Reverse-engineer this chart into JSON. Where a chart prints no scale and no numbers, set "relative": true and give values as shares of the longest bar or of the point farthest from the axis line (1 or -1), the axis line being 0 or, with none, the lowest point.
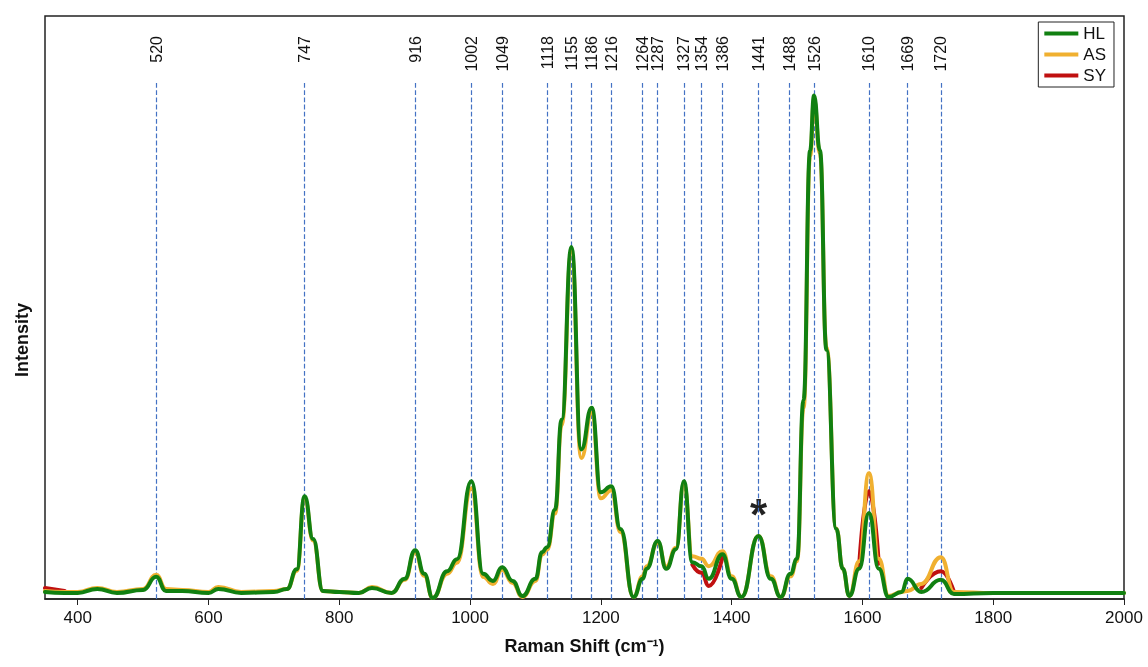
{
  "chart_data": {
    "type": "line",
    "relative": true,
    "xlabel": "Raman Shift (cm⁻¹)",
    "ylabel": "Intensity",
    "xlim": [
      350,
      2000
    ],
    "xticks": [
      400,
      600,
      800,
      1000,
      1200,
      1400,
      1600,
      1800,
      2000
    ],
    "legend": "top right",
    "grid": false,
    "marker": "none",
    "line_style": "solid",
    "x": [
      350,
      380,
      400,
      430,
      460,
      500,
      520,
      535,
      560,
      600,
      615,
      650,
      700,
      720,
      735,
      747,
      760,
      775,
      800,
      830,
      850,
      880,
      900,
      916,
      930,
      943,
      965,
      980,
      1002,
      1020,
      1035,
      1049,
      1065,
      1080,
      1100,
      1110,
      1118,
      1130,
      1140,
      1155,
      1170,
      1186,
      1200,
      1216,
      1230,
      1250,
      1264,
      1270,
      1287,
      1300,
      1315,
      1327,
      1340,
      1354,
      1365,
      1386,
      1400,
      1415,
      1441,
      1460,
      1475,
      1490,
      1500,
      1510,
      1520,
      1526,
      1535,
      1545,
      1560,
      1570,
      1580,
      1595,
      1610,
      1625,
      1640,
      1660,
      1669,
      1690,
      1720,
      1740,
      1800,
      2000
    ],
    "series": [
      {
        "name": "HL",
        "color": "#118011",
        "values": [
          0.014,
          0.012,
          0.012,
          0.02,
          0.012,
          0.018,
          0.044,
          0.016,
          0.016,
          0.012,
          0.02,
          0.012,
          0.014,
          0.02,
          0.059,
          0.204,
          0.119,
          0.016,
          0.014,
          0.012,
          0.022,
          0.012,
          0.04,
          0.097,
          0.05,
          0.002,
          0.055,
          0.079,
          0.234,
          0.05,
          0.036,
          0.063,
          0.036,
          0.006,
          0.04,
          0.093,
          0.103,
          0.178,
          0.356,
          0.699,
          0.297,
          0.38,
          0.212,
          0.224,
          0.139,
          0.004,
          0.04,
          0.06,
          0.115,
          0.06,
          0.099,
          0.234,
          0.073,
          0.065,
          0.04,
          0.089,
          0.04,
          0.004,
          0.125,
          0.04,
          0.004,
          0.05,
          0.08,
          0.396,
          0.891,
          1,
          0.891,
          0.495,
          0.139,
          0.06,
          0.006,
          0.06,
          0.171,
          0.06,
          0.004,
          0.014,
          0.04,
          0.014,
          0.038,
          0.01,
          0.012,
          0.012
        ]
      },
      {
        "name": "AS",
        "color": "#f0b030",
        "values": [
          0.016,
          0.014,
          0.014,
          0.022,
          0.014,
          0.02,
          0.048,
          0.02,
          0.018,
          0.014,
          0.024,
          0.014,
          0.016,
          0.02,
          0.056,
          0.2,
          0.116,
          0.016,
          0.014,
          0.012,
          0.024,
          0.012,
          0.038,
          0.093,
          0.046,
          0.002,
          0.05,
          0.072,
          0.22,
          0.044,
          0.03,
          0.058,
          0.032,
          0.004,
          0.036,
          0.088,
          0.098,
          0.17,
          0.345,
          0.69,
          0.28,
          0.37,
          0.2,
          0.216,
          0.133,
          0.004,
          0.045,
          0.065,
          0.112,
          0.064,
          0.102,
          0.228,
          0.085,
          0.08,
          0.065,
          0.095,
          0.045,
          0.004,
          0.125,
          0.045,
          0.004,
          0.045,
          0.075,
          0.38,
          0.88,
          0.99,
          0.885,
          0.5,
          0.14,
          0.06,
          0.006,
          0.075,
          0.25,
          0.08,
          0.006,
          0.014,
          0.016,
          0.03,
          0.083,
          0.014,
          0.012,
          0.012
        ]
      },
      {
        "name": "SY",
        "color": "#c01010",
        "values": [
          0.022,
          0.016,
          null,
          null,
          null,
          null,
          null,
          null,
          null,
          null,
          null,
          null,
          null,
          null,
          null,
          null,
          null,
          null,
          null,
          null,
          null,
          null,
          null,
          null,
          null,
          null,
          null,
          null,
          null,
          null,
          null,
          null,
          null,
          null,
          null,
          null,
          null,
          null,
          null,
          null,
          null,
          null,
          null,
          null,
          null,
          null,
          null,
          null,
          null,
          null,
          null,
          null,
          0.068,
          0.052,
          0.026,
          0.083,
          null,
          null,
          null,
          null,
          null,
          null,
          null,
          null,
          null,
          null,
          null,
          null,
          null,
          null,
          null,
          0.066,
          0.214,
          0.07,
          null,
          null,
          null,
          0.022,
          0.055,
          0.014,
          null,
          null
        ]
      }
    ],
    "ref_lines": [
      {
        "axis": "x",
        "value": 520,
        "label": "520",
        "color": "#4472c4",
        "line_style": "dashed"
      },
      {
        "axis": "x",
        "value": 747,
        "label": "747",
        "color": "#4472c4",
        "line_style": "dashed"
      },
      {
        "axis": "x",
        "value": 916,
        "label": "916",
        "color": "#4472c4",
        "line_style": "dashed"
      },
      {
        "axis": "x",
        "value": 1002,
        "label": "1002",
        "color": "#4472c4",
        "line_style": "dashed"
      },
      {
        "axis": "x",
        "value": 1049,
        "label": "1049",
        "color": "#4472c4",
        "line_style": "dashed"
      },
      {
        "axis": "x",
        "value": 1118,
        "label": "1118",
        "color": "#4472c4",
        "line_style": "dashed"
      },
      {
        "axis": "x",
        "value": 1155,
        "label": "1155",
        "color": "#4472c4",
        "line_style": "dashed"
      },
      {
        "axis": "x",
        "value": 1186,
        "label": "1186",
        "color": "#4472c4",
        "line_style": "dashed"
      },
      {
        "axis": "x",
        "value": 1216,
        "label": "1216",
        "color": "#4472c4",
        "line_style": "dashed"
      },
      {
        "axis": "x",
        "value": 1264,
        "label": "1264",
        "color": "#4472c4",
        "line_style": "dashed"
      },
      {
        "axis": "x",
        "value": 1287,
        "label": "1287",
        "color": "#4472c4",
        "line_style": "dashed"
      },
      {
        "axis": "x",
        "value": 1327,
        "label": "1327",
        "color": "#4472c4",
        "line_style": "dashed"
      },
      {
        "axis": "x",
        "value": 1354,
        "label": "1354",
        "color": "#4472c4",
        "line_style": "dashed"
      },
      {
        "axis": "x",
        "value": 1386,
        "label": "1386",
        "color": "#4472c4",
        "line_style": "dashed"
      },
      {
        "axis": "x",
        "value": 1441,
        "label": "1441",
        "color": "#4472c4",
        "line_style": "dashed"
      },
      {
        "axis": "x",
        "value": 1488,
        "label": "1488",
        "color": "#4472c4",
        "line_style": "dashed"
      },
      {
        "axis": "x",
        "value": 1526,
        "label": "1526",
        "color": "#4472c4",
        "line_style": "dashed"
      },
      {
        "axis": "x",
        "value": 1610,
        "label": "1610",
        "color": "#4472c4",
        "line_style": "dashed"
      },
      {
        "axis": "x",
        "value": 1669,
        "label": "1669",
        "color": "#4472c4",
        "line_style": "dashed"
      },
      {
        "axis": "x",
        "value": 1720,
        "label": "1720",
        "color": "#4472c4",
        "line_style": "dashed"
      }
    ],
    "annotations": [
      {
        "text": "*",
        "x": 1441,
        "y": 0.18
      }
    ]
  }
}
